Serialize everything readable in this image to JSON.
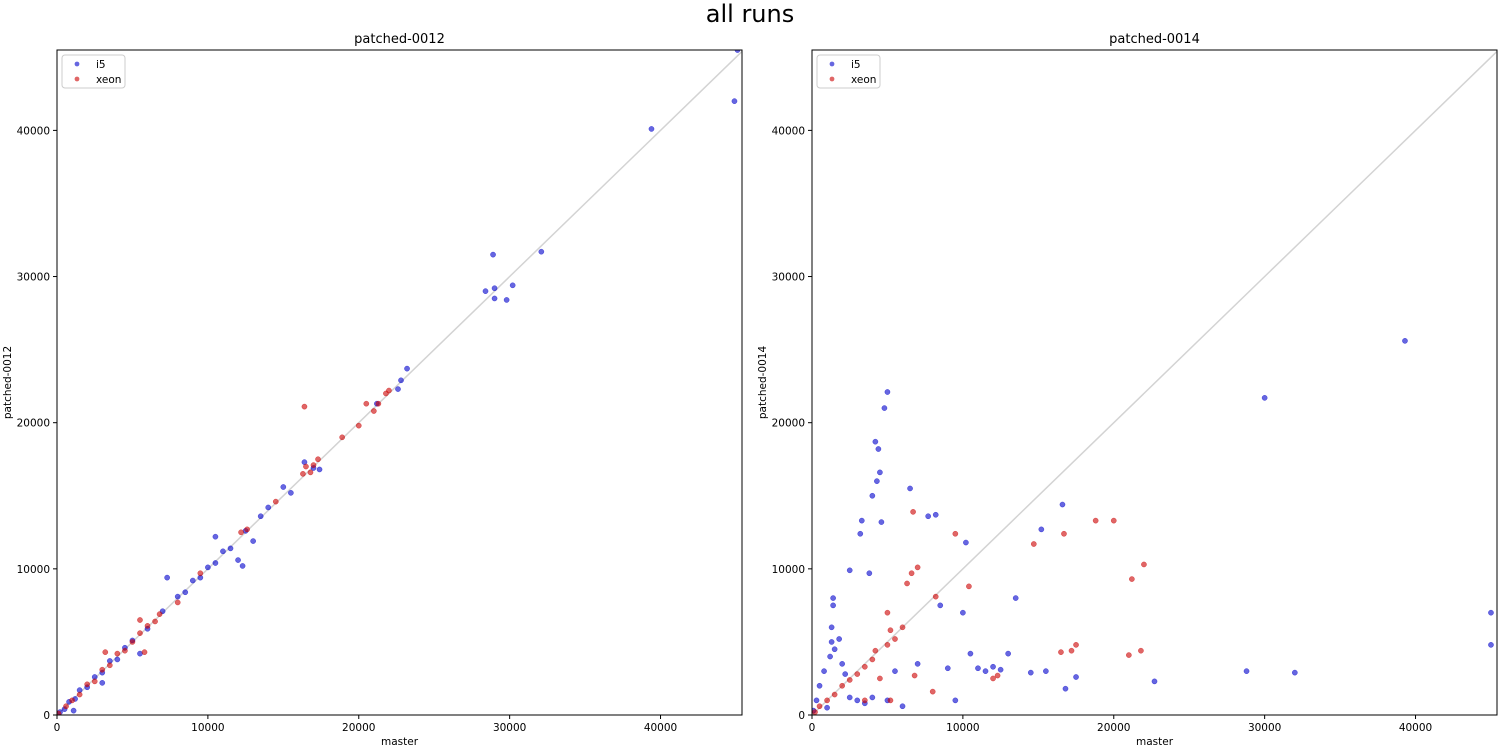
{
  "suptitle": "all runs",
  "colors": {
    "i5": "#0000cc",
    "xeon": "#cc0000",
    "diagonal": "#d3d3d3"
  },
  "chart_data": [
    {
      "type": "scatter",
      "title": "patched-0012",
      "xlabel": "master",
      "ylabel": "patched-0012",
      "xlim": [
        0,
        45400
      ],
      "ylim": [
        0,
        45500
      ],
      "xticks": [
        0,
        10000,
        20000,
        30000,
        40000
      ],
      "yticks": [
        0,
        10000,
        20000,
        30000,
        40000
      ],
      "legend": "top-left",
      "reference_line": "y = x",
      "series": [
        {
          "name": "i5",
          "points": [
            [
              200,
              200
            ],
            [
              500,
              400
            ],
            [
              800,
              900
            ],
            [
              1200,
              1100
            ],
            [
              1500,
              1700
            ],
            [
              2000,
              1900
            ],
            [
              2500,
              2600
            ],
            [
              3000,
              2900
            ],
            [
              3000,
              2200
            ],
            [
              1100,
              300
            ],
            [
              3500,
              3700
            ],
            [
              4000,
              3800
            ],
            [
              4500,
              4600
            ],
            [
              5000,
              5100
            ],
            [
              5500,
              4200
            ],
            [
              6000,
              5900
            ],
            [
              7000,
              7100
            ],
            [
              7300,
              9400
            ],
            [
              8000,
              8100
            ],
            [
              8500,
              8400
            ],
            [
              9000,
              9200
            ],
            [
              9500,
              9400
            ],
            [
              10000,
              10100
            ],
            [
              10500,
              10400
            ],
            [
              10500,
              12200
            ],
            [
              11000,
              11200
            ],
            [
              11500,
              11400
            ],
            [
              12000,
              10600
            ],
            [
              12300,
              10200
            ],
            [
              12500,
              12600
            ],
            [
              13000,
              11900
            ],
            [
              13500,
              13600
            ],
            [
              14000,
              14200
            ],
            [
              15000,
              15600
            ],
            [
              15500,
              15200
            ],
            [
              16400,
              17300
            ],
            [
              17000,
              16900
            ],
            [
              17400,
              16800
            ],
            [
              21200,
              21300
            ],
            [
              22600,
              22300
            ],
            [
              22800,
              22900
            ],
            [
              23200,
              23700
            ],
            [
              28400,
              29000
            ],
            [
              28900,
              31500
            ],
            [
              29000,
              29200
            ],
            [
              29000,
              28500
            ],
            [
              29800,
              28400
            ],
            [
              30200,
              29400
            ],
            [
              32100,
              31700
            ],
            [
              39400,
              40100
            ],
            [
              44900,
              42000
            ],
            [
              45100,
              45500
            ]
          ]
        },
        {
          "name": "xeon",
          "points": [
            [
              100,
              100
            ],
            [
              600,
              600
            ],
            [
              1000,
              1000
            ],
            [
              1500,
              1400
            ],
            [
              2000,
              2100
            ],
            [
              2500,
              2300
            ],
            [
              3000,
              3100
            ],
            [
              3200,
              4300
            ],
            [
              3500,
              3400
            ],
            [
              4000,
              4200
            ],
            [
              4500,
              4400
            ],
            [
              5000,
              5000
            ],
            [
              5500,
              5600
            ],
            [
              5500,
              6500
            ],
            [
              5800,
              4300
            ],
            [
              6000,
              6100
            ],
            [
              6500,
              6400
            ],
            [
              6800,
              6900
            ],
            [
              8000,
              7700
            ],
            [
              9500,
              9700
            ],
            [
              12200,
              12500
            ],
            [
              12600,
              12700
            ],
            [
              14500,
              14600
            ],
            [
              16300,
              16500
            ],
            [
              16500,
              17000
            ],
            [
              16800,
              16600
            ],
            [
              17000,
              17100
            ],
            [
              17300,
              17500
            ],
            [
              16400,
              21100
            ],
            [
              18900,
              19000
            ],
            [
              20000,
              19800
            ],
            [
              20500,
              21300
            ],
            [
              21000,
              20800
            ],
            [
              21300,
              21300
            ],
            [
              21800,
              22000
            ],
            [
              22000,
              22200
            ]
          ]
        }
      ]
    },
    {
      "type": "scatter",
      "title": "patched-0014",
      "xlabel": "master",
      "ylabel": "patched-0014",
      "xlim": [
        0,
        45400
      ],
      "ylim": [
        0,
        45500
      ],
      "xticks": [
        0,
        10000,
        20000,
        30000,
        40000
      ],
      "yticks": [
        0,
        10000,
        20000,
        30000,
        40000
      ],
      "legend": "top-left",
      "reference_line": "y = x",
      "series": [
        {
          "name": "i5",
          "points": [
            [
              100,
              300
            ],
            [
              300,
              1000
            ],
            [
              500,
              2000
            ],
            [
              800,
              3000
            ],
            [
              1000,
              500
            ],
            [
              1200,
              4000
            ],
            [
              1300,
              5000
            ],
            [
              1300,
              6000
            ],
            [
              1400,
              7500
            ],
            [
              1400,
              8000
            ],
            [
              1500,
              4500
            ],
            [
              1800,
              5200
            ],
            [
              2000,
              3500
            ],
            [
              2200,
              2800
            ],
            [
              2500,
              1200
            ],
            [
              2500,
              9900
            ],
            [
              3000,
              1000
            ],
            [
              3200,
              12400
            ],
            [
              3300,
              13300
            ],
            [
              3500,
              800
            ],
            [
              3800,
              9700
            ],
            [
              4000,
              1200
            ],
            [
              4200,
              18700
            ],
            [
              4400,
              18200
            ],
            [
              4500,
              16600
            ],
            [
              4000,
              15000
            ],
            [
              4300,
              16000
            ],
            [
              4600,
              13200
            ],
            [
              4800,
              21000
            ],
            [
              5000,
              22100
            ],
            [
              5000,
              1000
            ],
            [
              5500,
              3000
            ],
            [
              6000,
              600
            ],
            [
              6500,
              15500
            ],
            [
              7000,
              3500
            ],
            [
              7700,
              13600
            ],
            [
              8200,
              13700
            ],
            [
              8500,
              7500
            ],
            [
              9000,
              3200
            ],
            [
              9500,
              1000
            ],
            [
              10000,
              7000
            ],
            [
              10200,
              11800
            ],
            [
              10500,
              4200
            ],
            [
              11000,
              3200
            ],
            [
              11500,
              3000
            ],
            [
              12000,
              3300
            ],
            [
              12500,
              3100
            ],
            [
              13000,
              4200
            ],
            [
              13500,
              8000
            ],
            [
              14500,
              2900
            ],
            [
              15200,
              12700
            ],
            [
              15500,
              3000
            ],
            [
              16600,
              14400
            ],
            [
              16800,
              1800
            ],
            [
              17500,
              2600
            ],
            [
              22700,
              2300
            ],
            [
              28800,
              3000
            ],
            [
              30000,
              21700
            ],
            [
              32000,
              2900
            ],
            [
              39300,
              25600
            ],
            [
              45000,
              7000
            ],
            [
              45000,
              4800
            ]
          ]
        },
        {
          "name": "xeon",
          "points": [
            [
              200,
              200
            ],
            [
              500,
              600
            ],
            [
              1000,
              1000
            ],
            [
              1500,
              1400
            ],
            [
              2000,
              2000
            ],
            [
              2500,
              2400
            ],
            [
              3000,
              2800
            ],
            [
              3500,
              1000
            ],
            [
              3500,
              3300
            ],
            [
              4000,
              3800
            ],
            [
              4200,
              4400
            ],
            [
              4500,
              2500
            ],
            [
              5000,
              4800
            ],
            [
              5000,
              7000
            ],
            [
              5200,
              5800
            ],
            [
              5200,
              1000
            ],
            [
              5500,
              5200
            ],
            [
              6000,
              6000
            ],
            [
              6300,
              9000
            ],
            [
              6600,
              9700
            ],
            [
              6700,
              13900
            ],
            [
              6800,
              2700
            ],
            [
              7000,
              10100
            ],
            [
              8000,
              1600
            ],
            [
              8200,
              8100
            ],
            [
              9500,
              12400
            ],
            [
              10400,
              8800
            ],
            [
              12000,
              2500
            ],
            [
              12300,
              2700
            ],
            [
              14700,
              11700
            ],
            [
              16500,
              4300
            ],
            [
              16700,
              12400
            ],
            [
              17200,
              4400
            ],
            [
              17500,
              4800
            ],
            [
              18800,
              13300
            ],
            [
              20000,
              13300
            ],
            [
              21000,
              4100
            ],
            [
              21200,
              9300
            ],
            [
              21800,
              4400
            ],
            [
              22000,
              10300
            ]
          ]
        }
      ]
    }
  ]
}
